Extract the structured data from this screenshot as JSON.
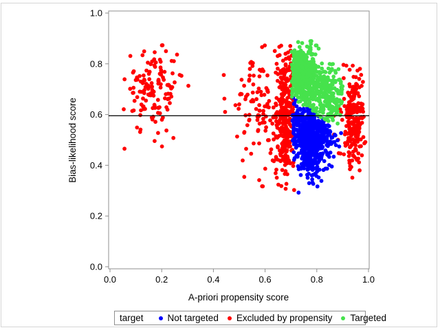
{
  "chart_data": {
    "type": "scatter",
    "title": "",
    "xlabel": "A-priori propensity score",
    "ylabel": "Bias-likelihood score",
    "xlim": [
      0.0,
      1.0
    ],
    "ylim": [
      0.0,
      1.0
    ],
    "xticks": [
      "0.0",
      "0.2",
      "0.4",
      "0.6",
      "0.8",
      "1.0"
    ],
    "yticks": [
      "0.0",
      "0.2",
      "0.4",
      "0.6",
      "0.8",
      "1.0"
    ],
    "grid": "off",
    "frame_color": "#8f8f8f",
    "background": "#ffffff",
    "reference_line": {
      "y": 0.595,
      "color": "#000000"
    },
    "legend": {
      "title": "target",
      "position": "bottom"
    },
    "series": [
      {
        "key": "not_targeted",
        "label": "Not targeted",
        "color": "#0000ff"
      },
      {
        "key": "excluded",
        "label": "Excluded by propensity",
        "color": "#ff0000"
      },
      {
        "key": "targeted",
        "label": "Targeted",
        "color": "#46e24c"
      }
    ],
    "marker": {
      "shape": "dot",
      "radius_px": 2.9
    },
    "seed": 1234,
    "clusters": [
      {
        "series": "excluded",
        "n": 135,
        "cx": 0.17,
        "cy": 0.7,
        "sx": 0.057,
        "sy": 0.085,
        "xmin": 0.045,
        "xmax": 0.375,
        "ymin": 0.4,
        "ymax": 0.89
      },
      {
        "series": "excluded",
        "n": 4,
        "cx": 0.45,
        "cy": 0.66,
        "sx": 0.018,
        "sy": 0.035
      },
      {
        "series": "excluded",
        "n": 95,
        "cx": 0.565,
        "cy": 0.63,
        "sx": 0.042,
        "sy": 0.115,
        "xmin": 0.485,
        "xmax": 0.65,
        "ymin": 0.29,
        "ymax": 0.875
      },
      {
        "series": "excluded",
        "n": 300,
        "cx": 0.678,
        "cy": 0.6,
        "sx": 0.021,
        "sy": 0.135,
        "xmin": 0.627,
        "xmax": 0.714,
        "ymin": 0.3,
        "ymax": 0.875
      },
      {
        "series": "excluded",
        "n": 210,
        "cx": 0.947,
        "cy": 0.585,
        "sx": 0.019,
        "sy": 0.1,
        "xmin": 0.903,
        "xmax": 0.998,
        "ymin": 0.345,
        "ymax": 0.81
      },
      {
        "series": "excluded",
        "n": 20,
        "cx": 0.898,
        "cy": 0.61,
        "sx": 0.022,
        "sy": 0.115,
        "xmin": 0.855,
        "xmax": 0.935,
        "ymin": 0.38,
        "ymax": 0.815
      },
      {
        "series": "not_targeted",
        "n": 430,
        "cx": 0.775,
        "cy": 0.55,
        "sx": 0.046,
        "sy": 0.05,
        "xmin": 0.705,
        "xmax": 0.9,
        "ymin": 0.32,
        "ymax_line": {
          "x0": 0.703,
          "a": 0.672,
          "b": -0.72
        }
      },
      {
        "series": "not_targeted",
        "n": 240,
        "cx": 0.78,
        "cy": 0.445,
        "sx": 0.035,
        "sy": 0.058,
        "xmin": 0.712,
        "xmax": 0.87,
        "ymin": 0.29,
        "ymax_line": {
          "x0": 0.703,
          "a": 0.672,
          "b": -0.72
        }
      },
      {
        "series": "targeted",
        "n": 320,
        "cx": 0.733,
        "cy": 0.77,
        "sx": 0.022,
        "sy": 0.048,
        "xmin": 0.703,
        "xmax": 0.82,
        "ymax": 0.86,
        "ymin_line": {
          "x0": 0.703,
          "a": 0.668,
          "b": -0.7
        }
      },
      {
        "series": "targeted",
        "n": 220,
        "cx": 0.78,
        "cy": 0.71,
        "sx": 0.035,
        "sy": 0.055,
        "xmin": 0.703,
        "xmax": 0.88,
        "ymax": 0.84,
        "ymin_line": {
          "x0": 0.703,
          "a": 0.668,
          "b": -0.7
        }
      },
      {
        "series": "targeted",
        "n": 150,
        "cx": 0.85,
        "cy": 0.66,
        "sx": 0.027,
        "sy": 0.065,
        "xmin": 0.72,
        "xmax": 0.9,
        "ymax": 0.8,
        "ymin_line": {
          "x0": 0.703,
          "a": 0.668,
          "b": -0.7
        }
      },
      {
        "series": "targeted",
        "n": 25,
        "cx": 0.76,
        "cy": 0.862,
        "sx": 0.038,
        "sy": 0.026,
        "xmin": 0.705,
        "xmax": 0.86,
        "ymin": 0.798,
        "ymax": 0.915
      }
    ]
  }
}
